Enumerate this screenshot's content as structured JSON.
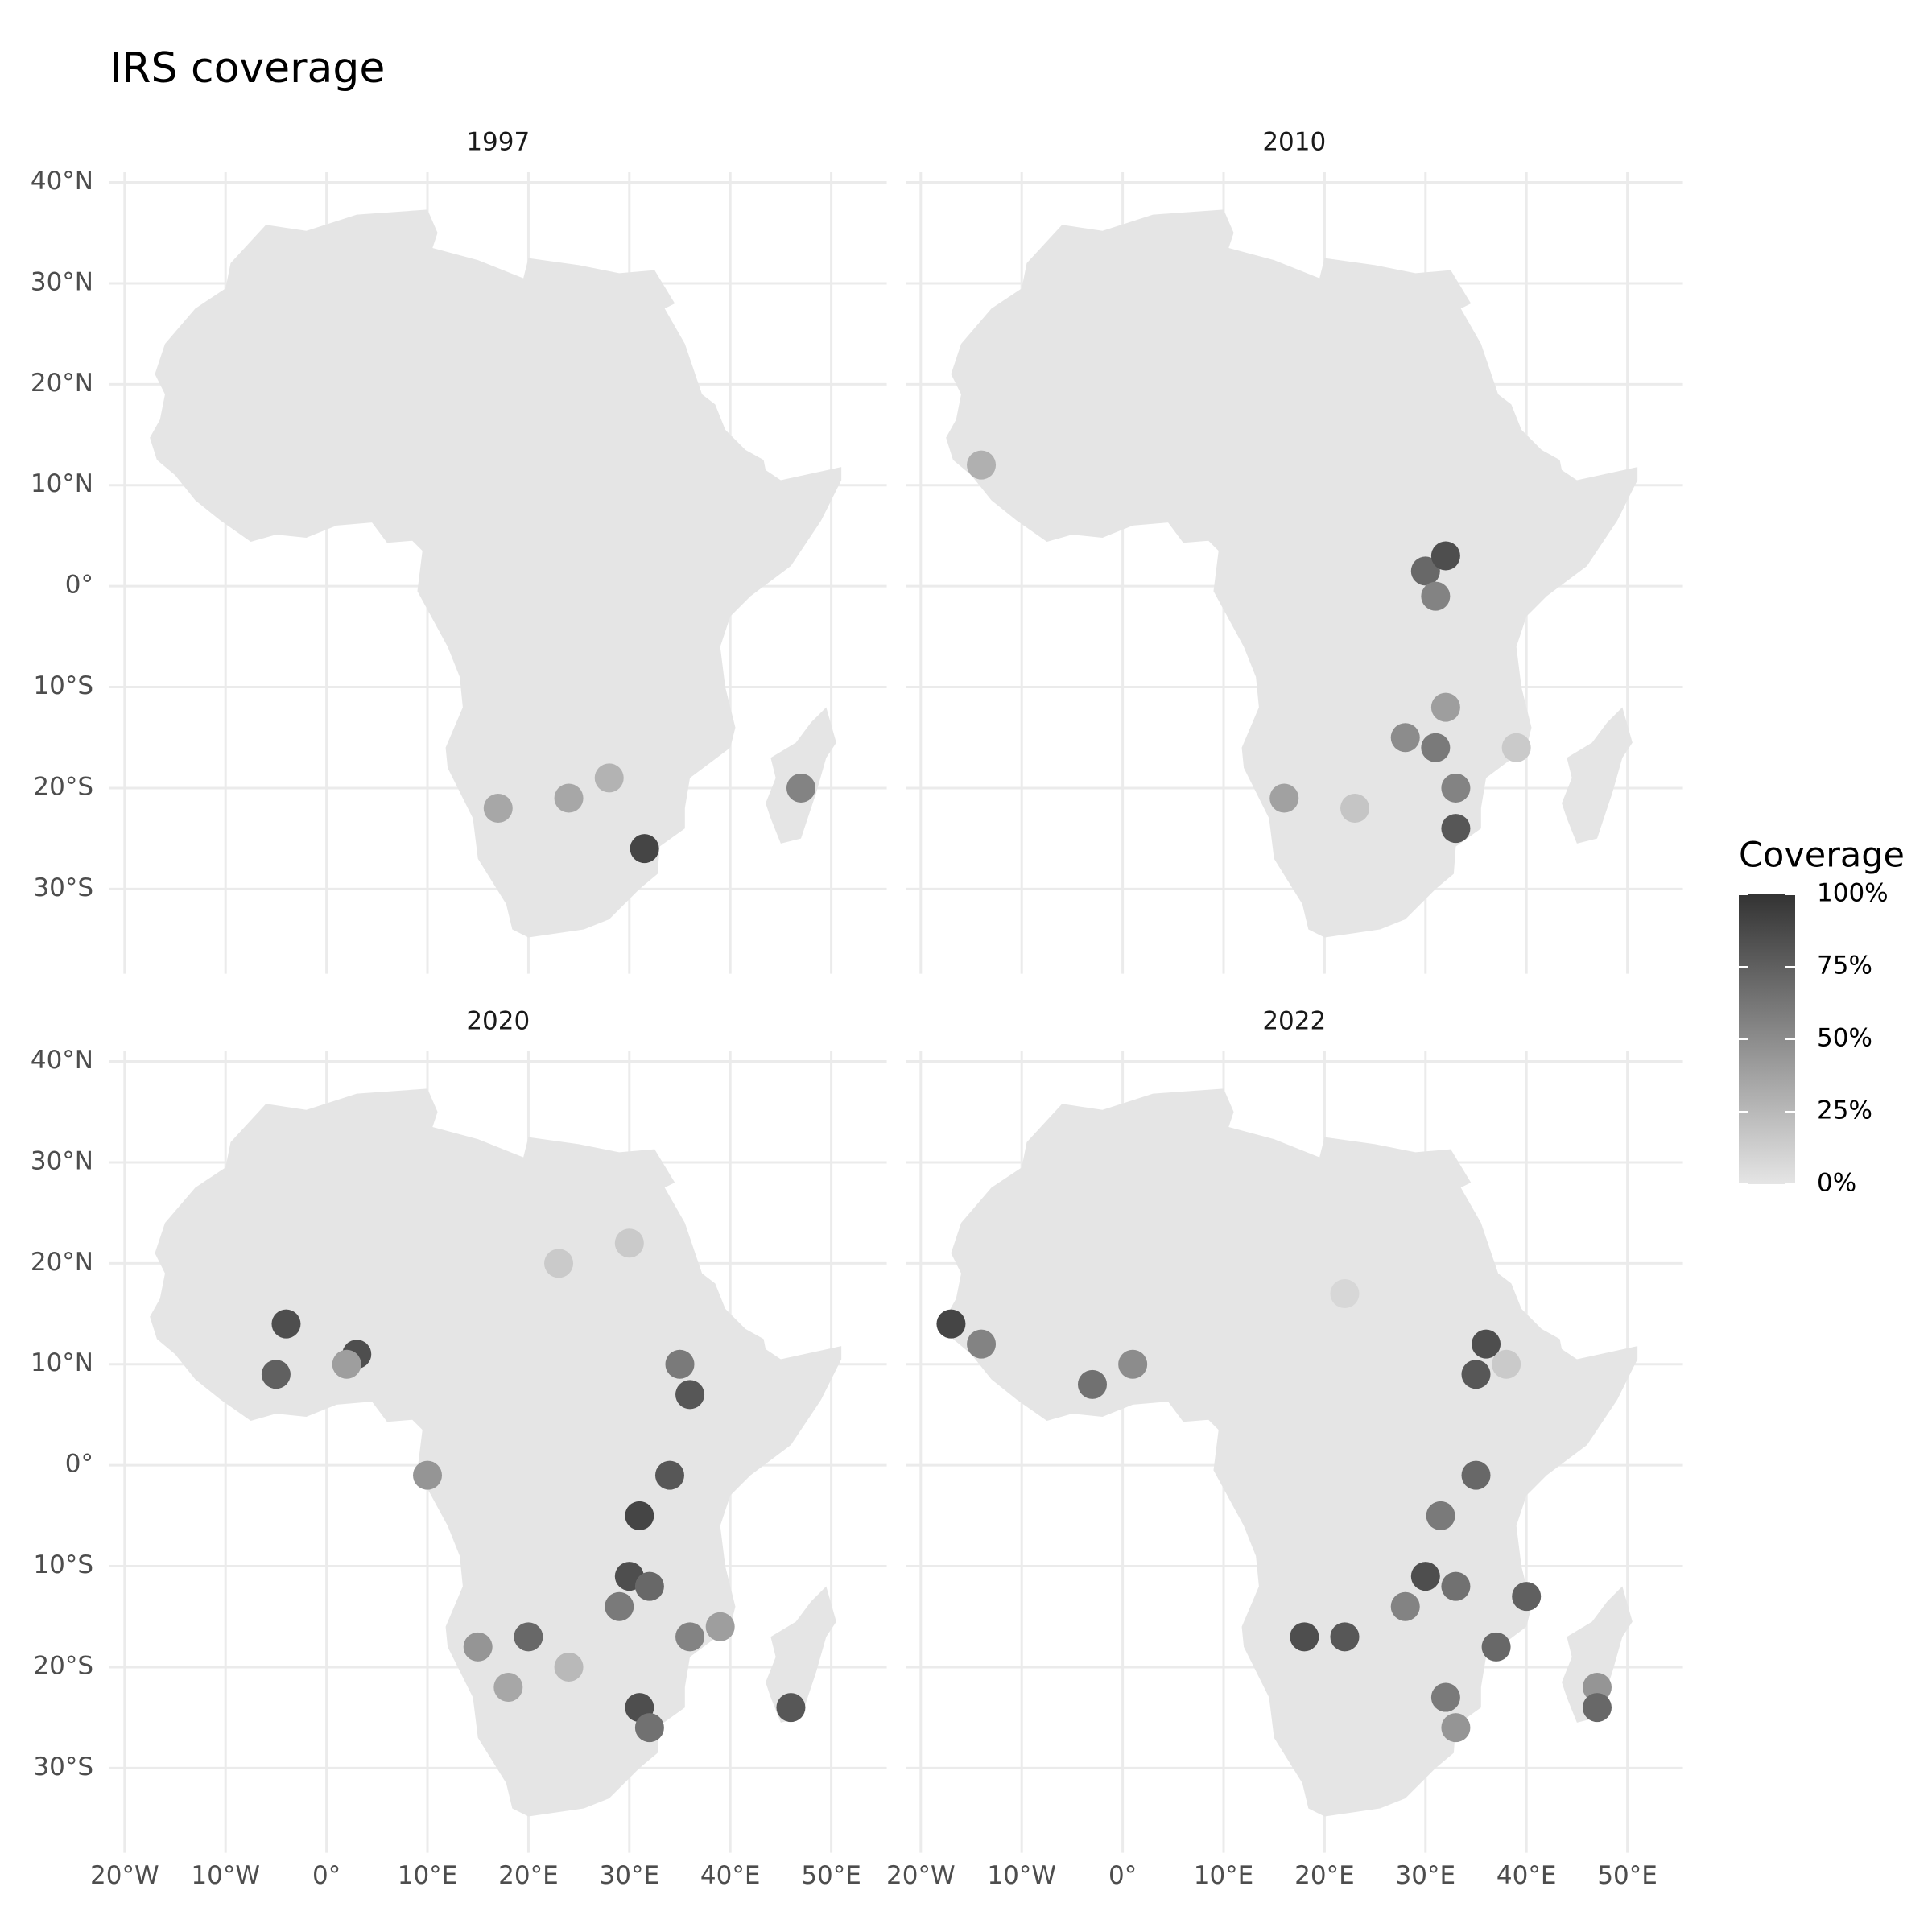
{
  "chart_data": {
    "type": "map",
    "title": "IRS coverage",
    "xlim": [
      -21.5,
      55.5
    ],
    "ylim": [
      -38.4,
      41
    ],
    "xticks": [
      {
        "value": -20,
        "label": "20°W"
      },
      {
        "value": -10,
        "label": "10°W"
      },
      {
        "value": 0,
        "label": "0°"
      },
      {
        "value": 10,
        "label": "10°E"
      },
      {
        "value": 20,
        "label": "20°E"
      },
      {
        "value": 30,
        "label": "30°E"
      },
      {
        "value": 40,
        "label": "40°E"
      },
      {
        "value": 50,
        "label": "50°E"
      }
    ],
    "yticks": [
      {
        "value": 40,
        "label": "40°N"
      },
      {
        "value": 30,
        "label": "30°N"
      },
      {
        "value": 20,
        "label": "20°N"
      },
      {
        "value": 10,
        "label": "10°N"
      },
      {
        "value": 0,
        "label": "0°"
      },
      {
        "value": -10,
        "label": "10°S"
      },
      {
        "value": -20,
        "label": "20°S"
      },
      {
        "value": -30,
        "label": "30°S"
      }
    ],
    "grid": true,
    "legend": {
      "title": "Coverage",
      "lim": [
        0,
        100
      ],
      "low_color": "#e5e5e5",
      "high_color": "#333333",
      "ticks": [
        {
          "value": 0,
          "label": "0%"
        },
        {
          "value": 25,
          "label": "25%"
        },
        {
          "value": 50,
          "label": "50%"
        },
        {
          "value": 75,
          "label": "75%"
        },
        {
          "value": 100,
          "label": "100%"
        }
      ]
    },
    "facets": [
      {
        "label": "1997",
        "regions": [
          {
            "lon": 17,
            "lat": -22,
            "value": 35
          },
          {
            "lon": 24,
            "lat": -21,
            "value": 35
          },
          {
            "lon": 28,
            "lat": -19,
            "value": 28
          },
          {
            "lon": 47,
            "lat": -20,
            "value": 55
          },
          {
            "lon": 31.5,
            "lat": -26,
            "value": 90
          }
        ]
      },
      {
        "label": "2010",
        "regions": [
          {
            "lon": 16,
            "lat": -21,
            "value": 38
          },
          {
            "lon": 23,
            "lat": -22,
            "value": 18
          },
          {
            "lon": 31,
            "lat": -16,
            "value": 60
          },
          {
            "lon": 28,
            "lat": -15,
            "value": 50
          },
          {
            "lon": 32,
            "lat": -12,
            "value": 40
          },
          {
            "lon": 33,
            "lat": -24,
            "value": 80
          },
          {
            "lon": 33,
            "lat": -20,
            "value": 55
          },
          {
            "lon": 30,
            "lat": 1.5,
            "value": 70
          },
          {
            "lon": 31,
            "lat": -1,
            "value": 55
          },
          {
            "lon": 32,
            "lat": 3,
            "value": 85
          },
          {
            "lon": 39,
            "lat": -16,
            "value": 15
          },
          {
            "lon": -14,
            "lat": 12,
            "value": 30
          }
        ]
      },
      {
        "label": "2020",
        "regions": [
          {
            "lon": 30,
            "lat": -11,
            "value": 85
          },
          {
            "lon": 29,
            "lat": -14,
            "value": 60
          },
          {
            "lon": 32,
            "lat": -12,
            "value": 70
          },
          {
            "lon": 15,
            "lat": -18,
            "value": 45
          },
          {
            "lon": 20,
            "lat": -17,
            "value": 70
          },
          {
            "lon": 24,
            "lat": -20,
            "value": 25
          },
          {
            "lon": 31,
            "lat": -24,
            "value": 85
          },
          {
            "lon": 32,
            "lat": -26,
            "value": 65
          },
          {
            "lon": 46,
            "lat": -24,
            "value": 80
          },
          {
            "lon": 31,
            "lat": -5,
            "value": 90
          },
          {
            "lon": 34,
            "lat": -1,
            "value": 80
          },
          {
            "lon": 35,
            "lat": 10,
            "value": 60
          },
          {
            "lon": 36,
            "lat": 7,
            "value": 80
          },
          {
            "lon": -4,
            "lat": 14,
            "value": 85
          },
          {
            "lon": 3,
            "lat": 11,
            "value": 85
          },
          {
            "lon": -5,
            "lat": 9,
            "value": 75
          },
          {
            "lon": 2,
            "lat": 10,
            "value": 40
          },
          {
            "lon": 10,
            "lat": -1,
            "value": 45
          },
          {
            "lon": 23,
            "lat": 20,
            "value": 15
          },
          {
            "lon": 30,
            "lat": 22,
            "value": 15
          },
          {
            "lon": 18,
            "lat": -22,
            "value": 35
          },
          {
            "lon": 36,
            "lat": -17,
            "value": 55
          },
          {
            "lon": 39,
            "lat": -16,
            "value": 40
          }
        ]
      },
      {
        "label": "2022",
        "regions": [
          {
            "lon": 30,
            "lat": -11,
            "value": 85
          },
          {
            "lon": 33,
            "lat": -12,
            "value": 65
          },
          {
            "lon": 28,
            "lat": -14,
            "value": 55
          },
          {
            "lon": 18,
            "lat": -17,
            "value": 85
          },
          {
            "lon": 22,
            "lat": -17,
            "value": 80
          },
          {
            "lon": 40,
            "lat": -13,
            "value": 75
          },
          {
            "lon": 37,
            "lat": -18,
            "value": 70
          },
          {
            "lon": 32,
            "lat": -23,
            "value": 60
          },
          {
            "lon": 33,
            "lat": -26,
            "value": 45
          },
          {
            "lon": 31.5,
            "lat": -5,
            "value": 60
          },
          {
            "lon": 35,
            "lat": -1,
            "value": 70
          },
          {
            "lon": 36,
            "lat": 12,
            "value": 85
          },
          {
            "lon": 35,
            "lat": 9,
            "value": 80
          },
          {
            "lon": -17,
            "lat": 14,
            "value": 90
          },
          {
            "lon": -14,
            "lat": 12,
            "value": 55
          },
          {
            "lon": 1,
            "lat": 10,
            "value": 50
          },
          {
            "lon": -3,
            "lat": 8,
            "value": 65
          },
          {
            "lon": 47,
            "lat": -22,
            "value": 45
          },
          {
            "lon": 47,
            "lat": -24,
            "value": 70
          },
          {
            "lon": 22,
            "lat": 17,
            "value": 8
          },
          {
            "lon": 38,
            "lat": 10,
            "value": 15
          }
        ]
      }
    ]
  }
}
